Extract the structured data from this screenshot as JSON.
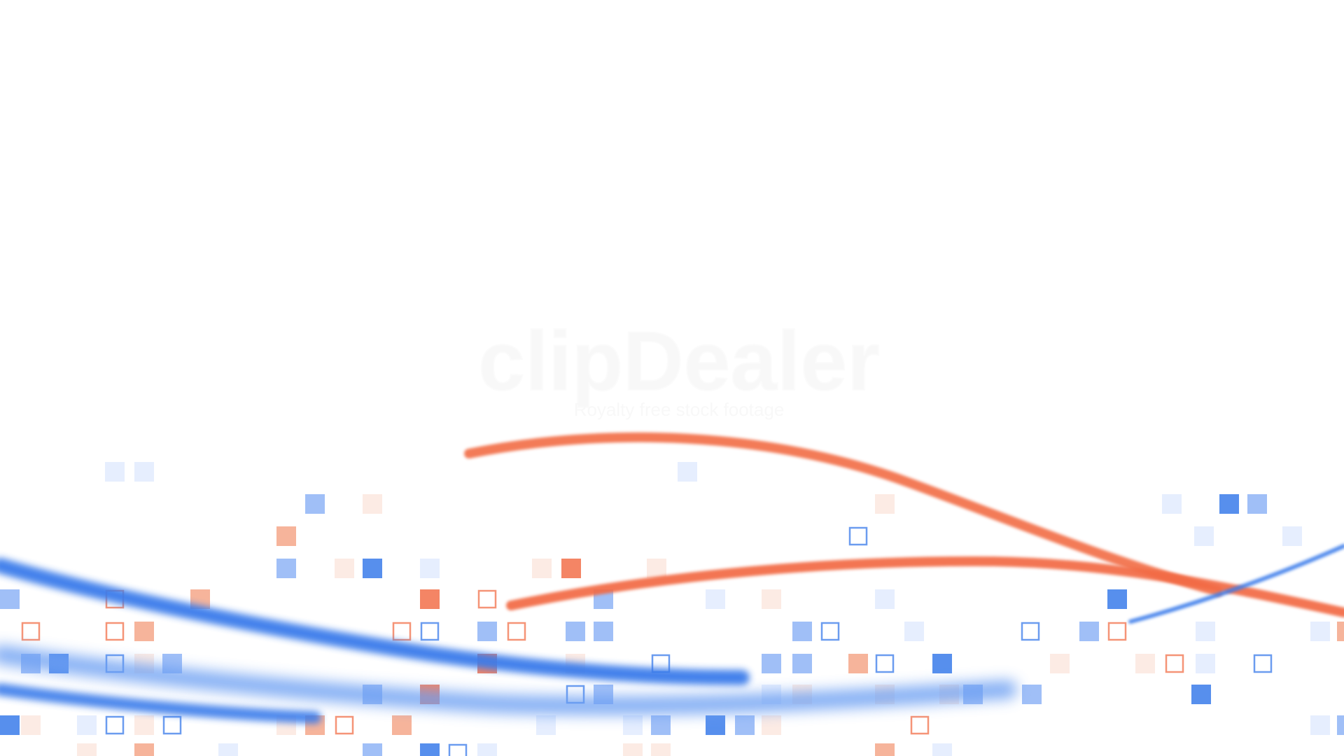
{
  "colors": {
    "background": "#ffffff",
    "blue": "#3a7bea",
    "light_blue": "#8fb4f6",
    "pale_blue": "#dbe7fd",
    "orange": "#f2704a",
    "light_orange": "#f5a789",
    "pale_orange": "#fbe2d8"
  },
  "watermark": {
    "logo_text": "clipDealer",
    "tagline": "Royalty free stock footage"
  }
}
